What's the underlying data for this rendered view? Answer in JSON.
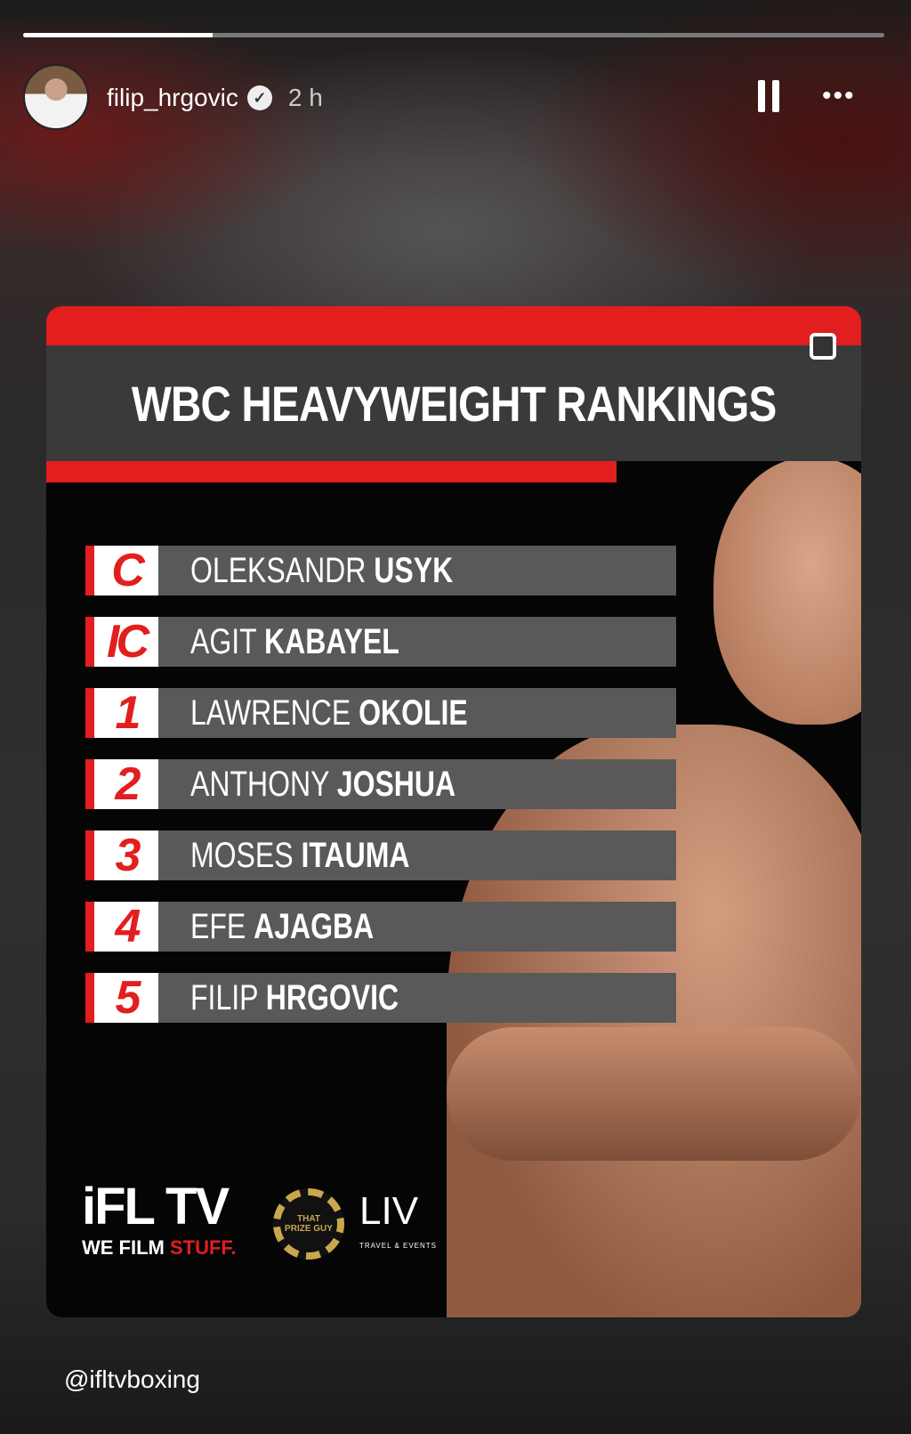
{
  "story": {
    "progress": 0.22,
    "username": "filip_hrgovic",
    "verified": true,
    "time": "2 h",
    "pause_icon": "pause-icon",
    "more_icon": "more-icon",
    "mention": "@ifltvboxing"
  },
  "post": {
    "title": "WBC HEAVYWEIGHT RANKINGS",
    "accent_color": "#e21e1e",
    "rankings": [
      {
        "rank": "C",
        "first": "OLEKSANDR",
        "last": "USYK"
      },
      {
        "rank": "IC",
        "first": "AGIT",
        "last": "KABAYEL"
      },
      {
        "rank": "1",
        "first": "LAWRENCE",
        "last": "OKOLIE"
      },
      {
        "rank": "2",
        "first": "ANTHONY",
        "last": "JOSHUA"
      },
      {
        "rank": "3",
        "first": "MOSES",
        "last": "ITAUMA"
      },
      {
        "rank": "4",
        "first": "EFE",
        "last": "AJAGBA"
      },
      {
        "rank": "5",
        "first": "FILIP",
        "last": "HRGOVIC"
      }
    ],
    "logos": {
      "ifl": "iFL TV",
      "tagline_white": "WE FILM ",
      "tagline_red": "STUFF.",
      "chip": "THAT PRIZE GUY",
      "liv": "LIV",
      "liv_sub": "TRAVEL & EVENTS"
    }
  }
}
